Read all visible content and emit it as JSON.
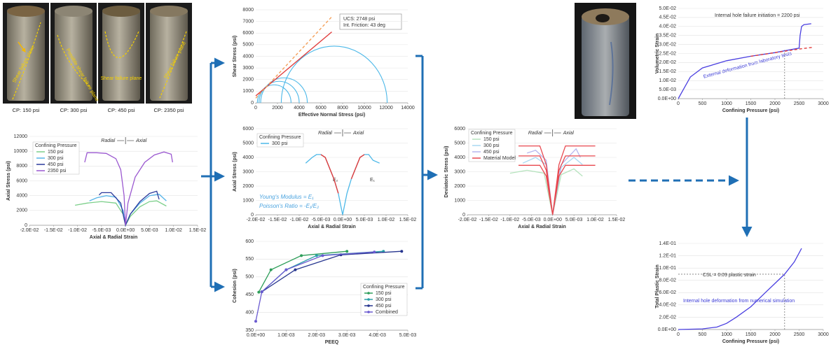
{
  "photos": {
    "captions": [
      "CP: 150 psi",
      "CP: 300 psi",
      "CP: 450 psi",
      "CP: 2350 psi"
    ],
    "labels": [
      "Shear failure plane",
      "Possible shear failure plane",
      "Shear failure plane",
      "Shear failure plane"
    ]
  },
  "chart_data": [
    {
      "type": "line",
      "xlabel": "Axial & Radial Strain",
      "ylabel": "Axial Stress (psi)",
      "legend_title": "Confining Pressure",
      "legend": "upper left",
      "left_note": "Radial",
      "right_note": "Axial",
      "grid": true,
      "xlim": [
        -0.02,
        0.015
      ],
      "ylim": [
        0,
        12000
      ],
      "xticks": [
        {
          "value": -0.02,
          "label": "-2.0E-02"
        },
        {
          "value": -0.015,
          "label": "-1.5E-02"
        },
        {
          "value": -0.01,
          "label": "-1.0E-02"
        },
        {
          "value": -0.005,
          "label": "-5.0E-03"
        },
        {
          "value": 0,
          "label": "0.0E+00"
        },
        {
          "value": 0.005,
          "label": "5.0E-03"
        },
        {
          "value": 0.01,
          "label": "1.0E-02"
        },
        {
          "value": 0.015,
          "label": "1.5E-02"
        }
      ],
      "yticks": [
        0,
        2000,
        4000,
        6000,
        8000,
        10000,
        12000
      ],
      "series": [
        {
          "name": "150 psi",
          "color": "#7ccf8a",
          "x": [
            -0.0105,
            -0.008,
            -0.005,
            -0.002,
            -0.0005,
            0,
            0.001,
            0.003,
            0.005,
            0.0065,
            0.0085
          ],
          "values": [
            2700,
            3000,
            3200,
            3000,
            1500,
            0,
            1200,
            2500,
            3200,
            3300,
            2600
          ]
        },
        {
          "name": "300 psi",
          "color": "#56b4e9",
          "x": [
            -0.0075,
            -0.006,
            -0.004,
            -0.002,
            -0.0005,
            0,
            0.001,
            0.003,
            0.005,
            0.007,
            0.0085
          ],
          "values": [
            3300,
            3700,
            4000,
            3800,
            2000,
            0,
            1500,
            3000,
            4000,
            4200,
            3300
          ]
        },
        {
          "name": "450 psi",
          "color": "#2b3a9c",
          "x": [
            -0.0055,
            -0.005,
            -0.003,
            -0.001,
            0,
            0.001,
            0.003,
            0.005,
            0.0065,
            0.007
          ],
          "values": [
            4100,
            4400,
            4400,
            3000,
            0,
            1500,
            3200,
            4300,
            4600,
            3500
          ]
        },
        {
          "name": "2350 psi",
          "color": "#9b59d0",
          "x": [
            -0.0085,
            -0.008,
            -0.006,
            -0.004,
            -0.002,
            -0.001,
            -0.0003,
            0,
            0.0005,
            0.002,
            0.004,
            0.006,
            0.008,
            0.0095,
            0.0098
          ],
          "values": [
            8500,
            9800,
            9800,
            9700,
            9000,
            7500,
            4000,
            0,
            3000,
            6500,
            8500,
            9500,
            9900,
            9600,
            8500
          ]
        }
      ]
    },
    {
      "type": "mohr",
      "xlabel": "Effective Normal Stress (psi)",
      "ylabel": "Shear Stress (psi)",
      "grid": true,
      "xlim": [
        0,
        14000
      ],
      "ylim": [
        0,
        8000
      ],
      "xticks": [
        0,
        2000,
        4000,
        6000,
        8000,
        10000,
        12000,
        14000
      ],
      "yticks": [
        0,
        1000,
        2000,
        3000,
        4000,
        5000,
        6000,
        7000,
        8000
      ],
      "box": [
        "UCS: 2748 psi",
        "Int. Friction: 43 deg"
      ],
      "circle_color": "#4cb8e8",
      "circles": {
        "min": [
          150,
          300,
          450,
          2350
        ],
        "max": [
          3250,
          4000,
          4750,
          12100
        ]
      },
      "lines": [
        {
          "color": "#e03c3c",
          "dashed": false,
          "x": [
            0,
            7000
          ],
          "values": [
            600,
            6100
          ]
        },
        {
          "color": "#f4a05a",
          "dashed": true,
          "x": [
            0,
            7000
          ],
          "values": [
            400,
            7400
          ]
        }
      ]
    },
    {
      "type": "line",
      "xlabel": "Axial & Radial Strain",
      "ylabel": "Axial Stress (psi)",
      "legend_title": "Confining Pressure",
      "legend": "upper left",
      "left_note": "Radial",
      "right_note": "Axial",
      "grid": true,
      "xlim": [
        -0.02,
        0.015
      ],
      "ylim": [
        0,
        6000
      ],
      "xticks": [
        {
          "value": -0.02,
          "label": "-2.0E-02"
        },
        {
          "value": -0.015,
          "label": "-1.5E-02"
        },
        {
          "value": -0.01,
          "label": "-1.0E-02"
        },
        {
          "value": -0.005,
          "label": "-5.0E-03"
        },
        {
          "value": 0,
          "label": "0.0E+00"
        },
        {
          "value": 0.005,
          "label": "5.0E-03"
        },
        {
          "value": 0.01,
          "label": "1.0E-02"
        },
        {
          "value": 0.015,
          "label": "1.5E-02"
        }
      ],
      "yticks": [
        0,
        1000,
        2000,
        3000,
        4000,
        5000,
        6000
      ],
      "series": [
        {
          "name": "300 psi",
          "color": "#4cb8e8",
          "x": [
            -0.0085,
            -0.007,
            -0.006,
            -0.005,
            -0.004,
            -0.002,
            -0.001,
            0,
            0.001,
            0.002,
            0.004,
            0.005,
            0.006,
            0.007,
            0.0085
          ],
          "values": [
            3600,
            4000,
            4200,
            4200,
            4000,
            2500,
            1500,
            0,
            1500,
            2500,
            4000,
            4200,
            4200,
            3800,
            3600
          ]
        }
      ],
      "lines": [
        {
          "color": "#e03c3c",
          "dashed": false,
          "x": [
            -0.005,
            -0.004,
            -0.002,
            -0.001
          ],
          "values": [
            4200,
            4000,
            2500,
            1500
          ]
        },
        {
          "color": "#e03c3c",
          "dashed": false,
          "x": [
            0.002,
            0.004,
            0.005
          ],
          "values": [
            2500,
            4000,
            4200
          ]
        }
      ],
      "texts": [
        "Young's Modulus = E₁",
        "Poisson's Ratio = -E₁/E₂",
        "E₂",
        "E₁"
      ]
    },
    {
      "type": "line",
      "markers": true,
      "xlabel": "PEEQ",
      "ylabel": "Cohesion (psi)",
      "legend_title": "Confining Pressure",
      "legend": "lower right",
      "grid": true,
      "xlim": [
        0,
        0.005
      ],
      "ylim": [
        350,
        600
      ],
      "xticks": [
        {
          "value": 0,
          "label": "0.0E+00"
        },
        {
          "value": 0.001,
          "label": "1.0E-03"
        },
        {
          "value": 0.002,
          "label": "2.0E-03"
        },
        {
          "value": 0.003,
          "label": "3.0E-03"
        },
        {
          "value": 0.004,
          "label": "4.0E-03"
        },
        {
          "value": 0.005,
          "label": "5.0E-03"
        }
      ],
      "yticks": [
        350,
        400,
        450,
        500,
        550,
        600
      ],
      "series": [
        {
          "name": "150 psi",
          "color": "#2e9e5a",
          "x": [
            0.0001,
            0.0005,
            0.0015,
            0.003
          ],
          "values": [
            457,
            520,
            560,
            572
          ]
        },
        {
          "name": "300 psi",
          "color": "#2a9fa8",
          "x": [
            0.0002,
            0.001,
            0.002,
            0.0042
          ],
          "values": [
            458,
            520,
            560,
            572
          ]
        },
        {
          "name": "450 psi",
          "color": "#26358f",
          "x": [
            0.0002,
            0.0013,
            0.0028,
            0.0048
          ],
          "values": [
            458,
            520,
            562,
            572
          ]
        },
        {
          "name": "Combined",
          "color": "#6b5bd0",
          "x": [
            0,
            0.0002,
            0.001,
            0.0022,
            0.0039
          ],
          "values": [
            375,
            458,
            520,
            560,
            570
          ]
        }
      ]
    },
    {
      "type": "line",
      "xlabel": "Axial & Radial Strain",
      "ylabel": "Deviatoric Stress (psi)",
      "legend_title": "Confining Pressure",
      "legend": "upper left",
      "left_note": "Radial",
      "right_note": "Axial",
      "grid": true,
      "xlim": [
        -0.02,
        0.015
      ],
      "ylim": [
        0,
        6000
      ],
      "xticks": [
        {
          "value": -0.02,
          "label": "-2.0E-02"
        },
        {
          "value": -0.015,
          "label": "-1.5E-02"
        },
        {
          "value": -0.01,
          "label": "-1.0E-02"
        },
        {
          "value": -0.005,
          "label": "-5.0E-03"
        },
        {
          "value": 0,
          "label": "0.0E+00"
        },
        {
          "value": 0.005,
          "label": "5.0E-03"
        },
        {
          "value": 0.01,
          "label": "1.0E-02"
        },
        {
          "value": 0.015,
          "label": "1.5E-02"
        }
      ],
      "yticks": [
        0,
        1000,
        2000,
        3000,
        4000,
        5000,
        6000
      ],
      "series": [
        {
          "name": "150 psi",
          "color": "#b5e3bd",
          "x": [
            -0.01,
            -0.006,
            -0.002,
            0,
            0.002,
            0.005,
            0.007
          ],
          "values": [
            2900,
            3100,
            2900,
            0,
            2800,
            3200,
            2700
          ]
        },
        {
          "name": "300 psi",
          "color": "#a9d8f2",
          "x": [
            -0.007,
            -0.004,
            -0.0015,
            0,
            0.002,
            0.005,
            0.007
          ],
          "values": [
            3600,
            4000,
            3500,
            0,
            3300,
            4000,
            3500
          ]
        },
        {
          "name": "450 psi",
          "color": "#b7b6ee",
          "x": [
            -0.006,
            -0.004,
            -0.0015,
            0,
            0.002,
            0.0055,
            0.0065
          ],
          "values": [
            4300,
            4500,
            3800,
            0,
            3500,
            4600,
            4000
          ]
        },
        {
          "name": "Material Model",
          "color": "#e8484f",
          "x": [
            -0.008,
            -0.003,
            -0.0015,
            0,
            0.0015,
            0.003,
            0.01,
            null,
            -0.008,
            -0.003,
            -0.0015,
            0,
            0.0015,
            0.003,
            0.01,
            null,
            -0.008,
            -0.003,
            -0.0015,
            0,
            0.0015,
            0.003,
            0.01
          ],
          "values": [
            4800,
            4800,
            3500,
            0,
            3500,
            4800,
            4800,
            null,
            4100,
            4100,
            3100,
            0,
            3100,
            4100,
            4100,
            null,
            3450,
            3450,
            2700,
            0,
            2700,
            3450,
            3450
          ]
        }
      ]
    },
    {
      "type": "line",
      "xlabel": "Confining Pressure (psi)",
      "ylabel": "Volumetric Strain",
      "grid": true,
      "xlim": [
        0,
        3000
      ],
      "ylim": [
        0,
        0.05
      ],
      "xticks": [
        0,
        500,
        1000,
        1500,
        2000,
        2500,
        3000
      ],
      "yticks": [
        {
          "value": 0,
          "label": "0.0E+00"
        },
        {
          "value": 0.005,
          "label": "5.0E-03"
        },
        {
          "value": 0.01,
          "label": "1.0E-02"
        },
        {
          "value": 0.015,
          "label": "1.5E-02"
        },
        {
          "value": 0.02,
          "label": "2.0E-02"
        },
        {
          "value": 0.025,
          "label": "2.5E-02"
        },
        {
          "value": 0.03,
          "label": "3.0E-02"
        },
        {
          "value": 0.035,
          "label": "3.5E-02"
        },
        {
          "value": 0.04,
          "label": "4.0E-02"
        },
        {
          "value": 0.045,
          "label": "4.5E-02"
        },
        {
          "value": 0.05,
          "label": "5.0E-02"
        }
      ],
      "series": [
        {
          "color": "#4a3fe0",
          "x": [
            0,
            250,
            500,
            1000,
            1500,
            2000,
            2300,
            2500,
            2520,
            2550,
            2600,
            2750
          ],
          "values": [
            0,
            0.012,
            0.017,
            0.021,
            0.0235,
            0.0255,
            0.027,
            0.028,
            0.035,
            0.04,
            0.041,
            0.0415
          ]
        }
      ],
      "lines": [
        {
          "color": "#e03c3c",
          "dashed": true,
          "x": [
            1500,
            2000,
            2500,
            2800
          ],
          "values": [
            0.0235,
            0.0255,
            0.0275,
            0.0285
          ]
        }
      ],
      "reference": {
        "x": 2200,
        "y": 0.027,
        "style": "vertical"
      },
      "texts": [
        "Internal hole failure initiation = 2200 psi",
        "External deformation from laboratory tests"
      ]
    },
    {
      "type": "line",
      "xlabel": "Confining Pressure (psi)",
      "ylabel": "Total Plastic Strain",
      "grid": true,
      "xlim": [
        0,
        3000
      ],
      "ylim": [
        0,
        0.14
      ],
      "xticks": [
        0,
        500,
        1000,
        1500,
        2000,
        2500,
        3000
      ],
      "yticks": [
        {
          "value": 0,
          "label": "0.0E+00"
        },
        {
          "value": 0.02,
          "label": "2.0E-02"
        },
        {
          "value": 0.04,
          "label": "4.0E-02"
        },
        {
          "value": 0.06,
          "label": "6.0E-02"
        },
        {
          "value": 0.08,
          "label": "8.0E-02"
        },
        {
          "value": 0.1,
          "label": "1.0E-01"
        },
        {
          "value": 0.12,
          "label": "1.2E-01"
        },
        {
          "value": 0.14,
          "label": "1.4E-01"
        }
      ],
      "series": [
        {
          "color": "#4a3fe0",
          "x": [
            0,
            500,
            800,
            1000,
            1200,
            1500,
            1800,
            2000,
            2200,
            2400,
            2550
          ],
          "values": [
            0,
            0.001,
            0.004,
            0.01,
            0.02,
            0.037,
            0.06,
            0.075,
            0.09,
            0.11,
            0.132
          ]
        }
      ],
      "reference": {
        "x": 2200,
        "y": 0.09,
        "style": "both"
      },
      "texts": [
        "CSL = 0.09 plastic strain",
        "Internal hole deformation from numerical simulation"
      ]
    }
  ]
}
